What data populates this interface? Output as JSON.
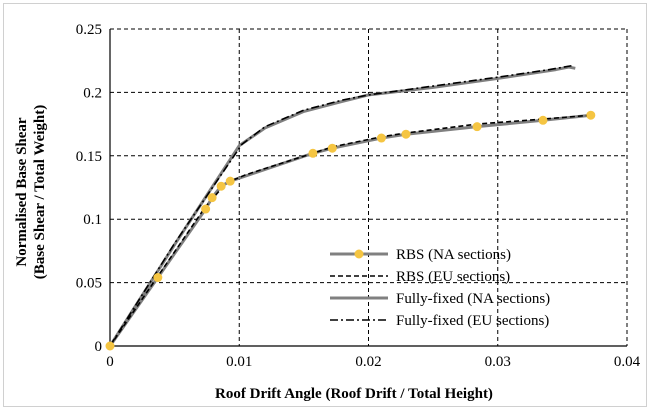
{
  "chart_data": {
    "type": "line",
    "title": "",
    "xlabel": "Roof Drift Angle (Roof Drift / Total Height)",
    "ylabel_line1": "Normalised Base Shear",
    "ylabel_line2": "(Base Shear / Total Weight)",
    "xlim": [
      0,
      0.04
    ],
    "ylim": [
      0,
      0.25
    ],
    "x_ticks": [
      0,
      0.01,
      0.02,
      0.03,
      0.04
    ],
    "x_tick_labels": [
      "0",
      "0.01",
      "0.02",
      "0.03",
      "0.04"
    ],
    "y_ticks": [
      0,
      0.05,
      0.1,
      0.15,
      0.2,
      0.25
    ],
    "y_tick_labels": [
      "0",
      "0.05",
      "0.1",
      "0.15",
      "0.2",
      "0.25"
    ],
    "grid": "dashed",
    "legend_position": "bottom-right",
    "series": [
      {
        "name": "RBS (NA sections)",
        "style": "solid-marker",
        "color": "#808080",
        "marker_color": "#f5c542",
        "x": [
          0,
          0.0037,
          0.0074,
          0.0079,
          0.0086,
          0.0093,
          0.0157,
          0.0172,
          0.021,
          0.0229,
          0.0284,
          0.0335,
          0.0372
        ],
        "y": [
          0,
          0.054,
          0.108,
          0.117,
          0.126,
          0.13,
          0.152,
          0.156,
          0.164,
          0.167,
          0.173,
          0.178,
          0.182
        ]
      },
      {
        "name": "RBS (EU sections)",
        "style": "dashed",
        "color": "#000000",
        "x": [
          0,
          0.0037,
          0.0074,
          0.0086,
          0.0093,
          0.0105,
          0.012,
          0.0157,
          0.0172,
          0.021,
          0.0229,
          0.0284,
          0.0335,
          0.0372
        ],
        "y": [
          0,
          0.055,
          0.11,
          0.124,
          0.13,
          0.135,
          0.14,
          0.152,
          0.157,
          0.165,
          0.168,
          0.175,
          0.179,
          0.182
        ]
      },
      {
        "name": "Fully-fixed (NA sections)",
        "style": "solid",
        "color": "#808080",
        "x": [
          0,
          0.005,
          0.01,
          0.012,
          0.015,
          0.018,
          0.02,
          0.025,
          0.03,
          0.0345,
          0.0355,
          0.036
        ],
        "y": [
          0,
          0.08,
          0.158,
          0.172,
          0.185,
          0.193,
          0.198,
          0.204,
          0.211,
          0.218,
          0.22,
          0.219
        ]
      },
      {
        "name": "Fully-fixed (EU sections)",
        "style": "dashdot",
        "color": "#000000",
        "x": [
          0,
          0.005,
          0.0102,
          0.012,
          0.015,
          0.018,
          0.02,
          0.025,
          0.03,
          0.034,
          0.0357
        ],
        "y": [
          0,
          0.081,
          0.159,
          0.173,
          0.186,
          0.194,
          0.198,
          0.205,
          0.212,
          0.218,
          0.221
        ]
      }
    ]
  }
}
